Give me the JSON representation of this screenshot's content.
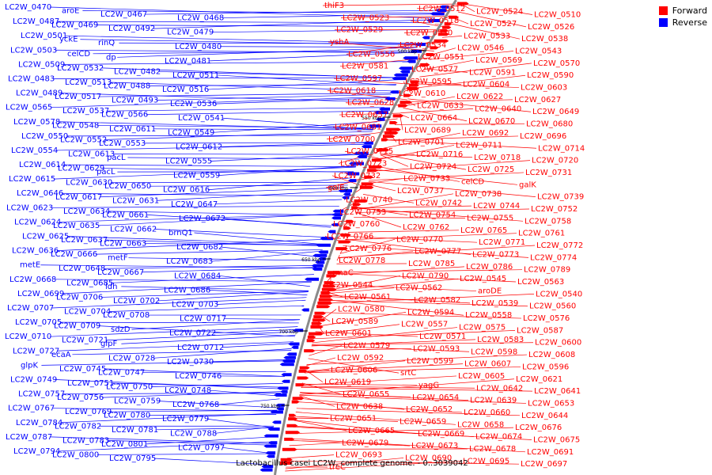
{
  "title": "Lactobacillus casei LC2W, complete genome. - 0..3039042",
  "legend": {
    "forward_label": "Forward",
    "reverse_label": "Reverse",
    "forward_color": "#ff0000",
    "reverse_color": "#0000ff"
  },
  "colors": {
    "forward": "#ff0000",
    "reverse": "#0000ff",
    "backbone": "#8a8a8a"
  },
  "position_marks": [
    "500 kbp",
    "550 kbp",
    "600 kbp",
    "650 kbp",
    "700 kbp",
    "750 kbp"
  ],
  "reverse_labels": [
    "LC2W_0470",
    "aroE",
    "LC2W_0467",
    "LC2W_0468",
    "LC2W_0487",
    "LC2W_0469",
    "LC2W_0492",
    "LC2W_0479",
    "LC2W_0501",
    "yckE",
    "rinQ",
    "LC2W_0480",
    "LC2W_0503",
    "celCD",
    "dp",
    "LC2W_0481",
    "LC2W_0509",
    "LC2W_0532",
    "LC2W_0482",
    "LC2W_0511",
    "LC2W_0483",
    "LC2W_0513",
    "LC2W_0488",
    "LC2W_0516",
    "LC2W_0489",
    "LC2W_0517",
    "LC2W_0493",
    "LC2W_0536",
    "LC2W_0565",
    "LC2W_0537",
    "LC2W_0566",
    "LC2W_0541",
    "LC2W_0578",
    "LC2W_0548",
    "LC2W_0611",
    "LC2W_0549",
    "LC2W_0550",
    "LC2W_0552",
    "LC2W_0553",
    "LC2W_0612",
    "LC2W_0554",
    "LC2W_0613",
    "pacL",
    "LC2W_0555",
    "LC2W_0614",
    "LC2W_0629",
    "pacL",
    "LC2W_0559",
    "LC2W_0615",
    "LC2W_0630",
    "LC2W_0650",
    "LC2W_0616",
    "LC2W_0646",
    "LC2W_0617",
    "LC2W_0631",
    "LC2W_0647",
    "LC2W_0623",
    "LC2W_0634",
    "LC2W_0661",
    "LC2W_0672",
    "LC2W_0624",
    "LC2W_0635",
    "LC2W_0662",
    "brnQ1",
    "LC2W_0625",
    "LC2W_0637",
    "LC2W_0663",
    "LC2W_0682",
    "LC2W_0636",
    "LC2W_0666",
    "metF",
    "LC2W_0683",
    "metE",
    "LC2W_0648",
    "LC2W_0667",
    "LC2W_0684",
    "LC2W_0668",
    "LC2W_0685",
    "ldh",
    "LC2W_0686",
    "LC2W_0699",
    "LC2W_0706",
    "LC2W_0702",
    "LC2W_0703",
    "LC2W_0707",
    "LC2W_0704",
    "LC2W_0708",
    "LC2W_0717",
    "LC2W_0705",
    "LC2W_0709",
    "sdzD",
    "LC2W_0722",
    "LC2W_0710",
    "LC2W_0721",
    "glpF",
    "LC2W_0712",
    "LC2W_0727",
    "ecaA",
    "LC2W_0728",
    "LC2W_0730",
    "glpK",
    "LC2W_0745",
    "LC2W_0747",
    "LC2W_0746",
    "LC2W_0749",
    "LC2W_0751",
    "LC2W_0750",
    "LC2W_0748",
    "LC2W_0757",
    "LC2W_0756",
    "LC2W_0759",
    "LC2W_0768",
    "LC2W_0767",
    "LC2W_0769",
    "LC2W_0780",
    "LC2W_0779",
    "LC2W_0784",
    "LC2W_0782",
    "LC2W_0781",
    "LC2W_0788",
    "LC2W_0787",
    "LC2W_0783",
    "LC2W_0801",
    "LC2W_0797",
    "LC2W_0794",
    "LC2W_0800",
    "LC2W_0795"
  ],
  "forward_labels": [
    "thiF3",
    "LC2W_0512",
    "LC2W_0524",
    "LC2W_0510",
    "LC2W_0523",
    "LC2W_0518",
    "LC2W_0527",
    "LC2W_0526",
    "LC2W_0529",
    "LC2W_0530",
    "LC2W_0533",
    "LC2W_0538",
    "yshA",
    "LC2W_0534",
    "LC2W_0546",
    "LC2W_0543",
    "LC2W_0556",
    "LC2W_0551",
    "LC2W_0569",
    "LC2W_0570",
    "LC2W_0581",
    "LC2W_0577",
    "LC2W_0591",
    "LC2W_0590",
    "LC2W_0597",
    "LC2W_0595",
    "LC2W_0604",
    "LC2W_0603",
    "LC2W_0618",
    "LC2W_0610",
    "LC2W_0622",
    "LC2W_0627",
    "LC2W_0628",
    "LC2W_0633",
    "LC2W_0640",
    "LC2W_0649",
    "LC2W_0657",
    "LC2W_0664",
    "LC2W_0670",
    "LC2W_0680",
    "LC2W_0681",
    "LC2W_0689",
    "LC2W_0692",
    "LC2W_0696",
    "LC2W_0700",
    "LC2W_0701",
    "LC2W_0711",
    "LC2W_0714",
    "LC2W_0715",
    "LC2W_0716",
    "LC2W_0718",
    "LC2W_0720",
    "LC2W_0723",
    "LC2W_0724",
    "LC2W_0725",
    "LC2W_0731",
    "LC2W_0732",
    "LC2W_0733",
    "celCD",
    "galK",
    "galE",
    "LC2W_0737",
    "LC2W_0738",
    "LC2W_0739",
    "LC2W_0740",
    "LC2W_0742",
    "LC2W_0744",
    "LC2W_0752",
    "LC2W_0753",
    "LC2W_0754",
    "LC2W_0755",
    "LC2W_0758",
    "LC2W_0760",
    "LC2W_0762",
    "LC2W_0765",
    "LC2W_0761",
    "LC2W_0766",
    "LC2W_0770",
    "LC2W_0771",
    "LC2W_0772",
    "LC2W_0776",
    "LC2W_0777",
    "LC2W_0773",
    "LC2W_0774",
    "LC2W_0778",
    "LC2W_0785",
    "LC2W_0786",
    "LC2W_0789",
    "rmaC",
    "LC2W_0790",
    "LC2W_0545",
    "LC2W_0563",
    "LC2W_0544",
    "LC2W_0562",
    "aroDE",
    "LC2W_0540",
    "LC2W_0561",
    "LC2W_0582",
    "LC2W_0539",
    "LC2W_0560",
    "LC2W_0580",
    "LC2W_0594",
    "LC2W_0558",
    "LC2W_0576",
    "LC2W_0589",
    "LC2W_0557",
    "LC2W_0575",
    "LC2W_0587",
    "LC2W_0601",
    "LC2W_0571",
    "LC2W_0583",
    "LC2W_0600",
    "LC2W_0579",
    "LC2W_0593",
    "LC2W_0598",
    "LC2W_0608",
    "LC2W_0592",
    "LC2W_0599",
    "LC2W_0607",
    "LC2W_0596",
    "LC2W_0606",
    "srtC",
    "LC2W_0605",
    "LC2W_0621",
    "LC2W_0619",
    "yagG",
    "LC2W_0642",
    "LC2W_0641",
    "LC2W_0655",
    "LC2W_0654",
    "LC2W_0639",
    "LC2W_0653",
    "LC2W_0638",
    "LC2W_0652",
    "LC2W_0660",
    "LC2W_0644",
    "LC2W_0651",
    "LC2W_0659",
    "LC2W_0658",
    "LC2W_0676",
    "LC2W_0665",
    "LC2W_0669",
    "LC2W_0674",
    "LC2W_0675",
    "LC2W_0679",
    "LC2W_0673",
    "LC2W_0678",
    "LC2W_0691",
    "LC2W_0693",
    "LC2W_0690",
    "LC2W_0695",
    "LC2W_0697",
    "treC"
  ]
}
